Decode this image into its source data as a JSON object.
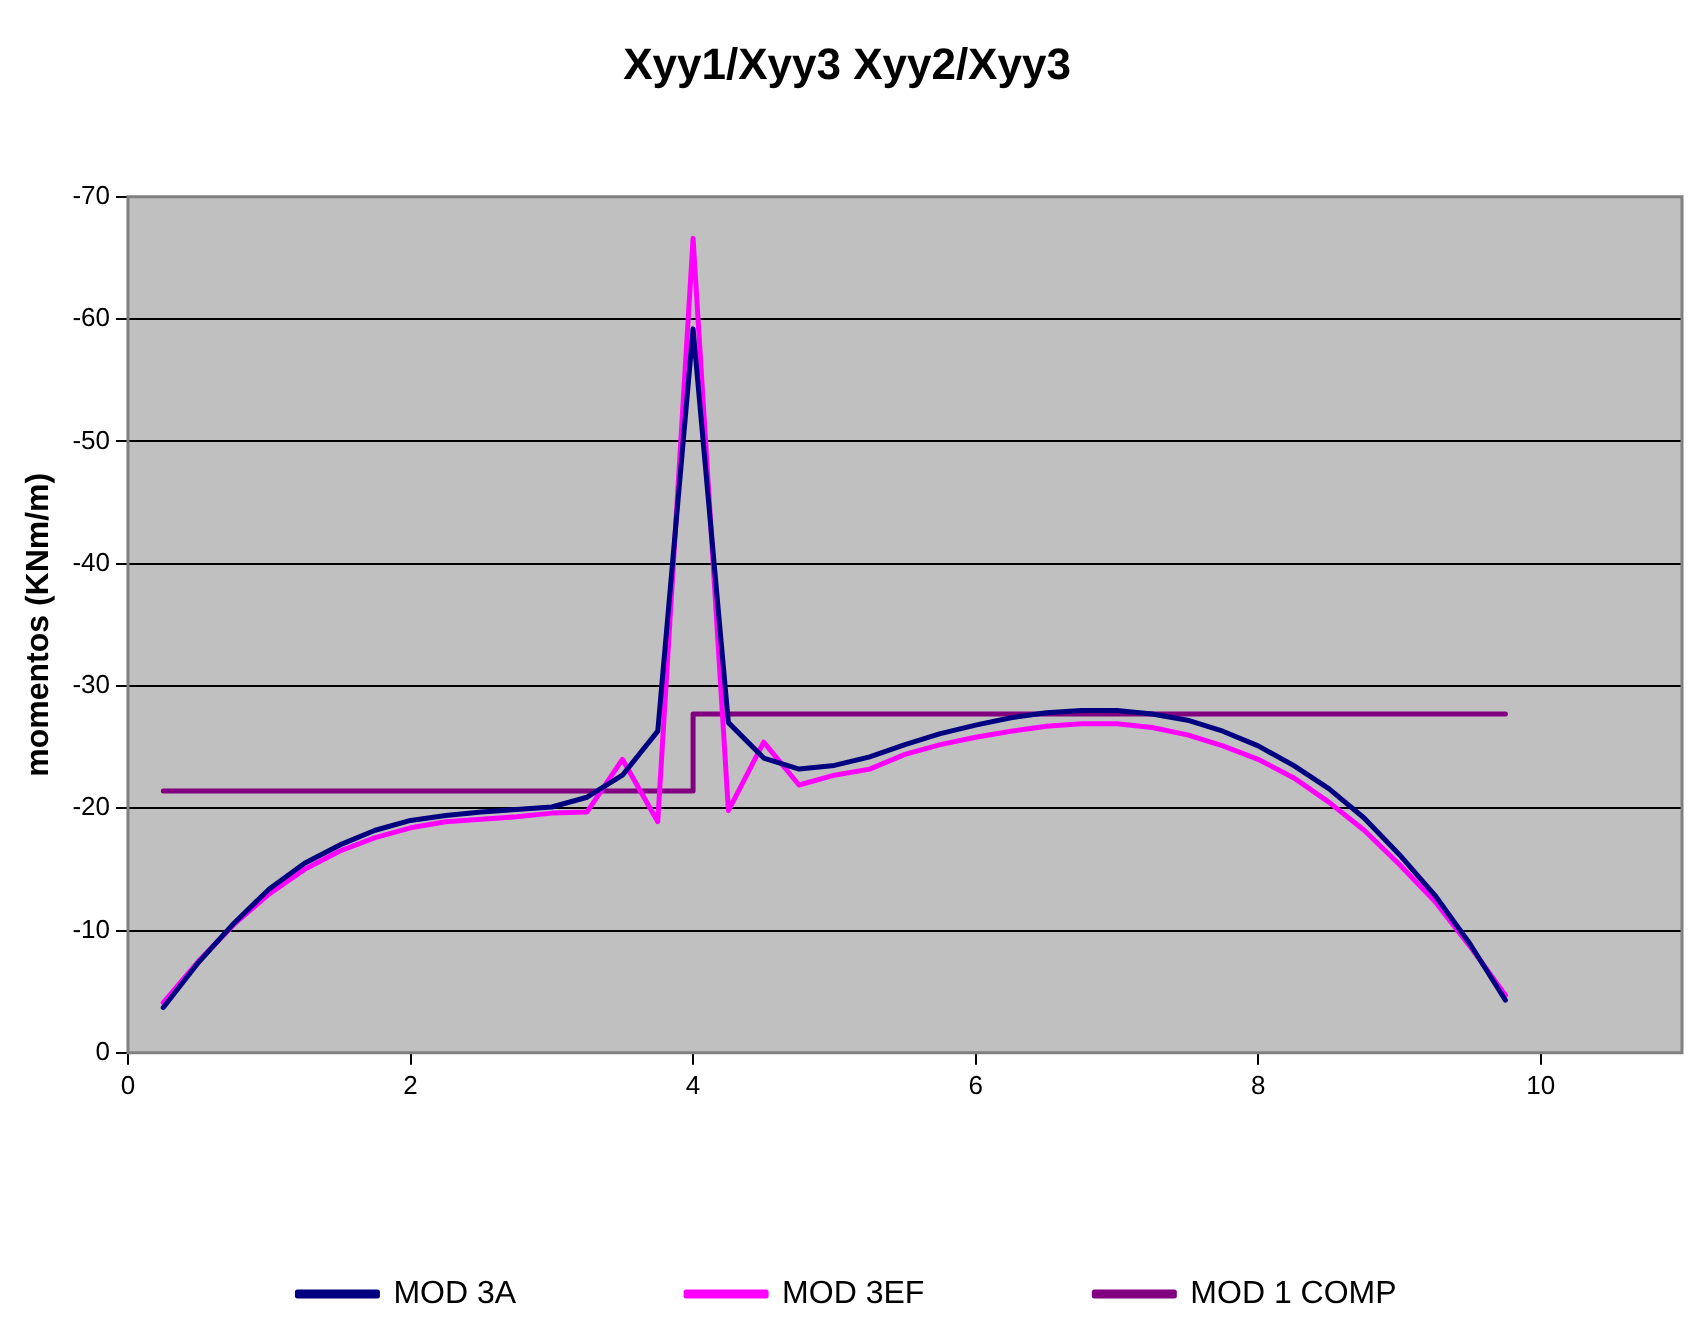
{
  "chart_data": {
    "type": "line",
    "title": "Xyy1/Xyy3 Xyy2/Xyy3",
    "ylabel": "momentos (KNm/m)",
    "x": [
      0.25,
      0.5,
      0.75,
      1,
      1.25,
      1.5,
      1.75,
      2,
      2.25,
      2.5,
      2.75,
      3,
      3.25,
      3.5,
      3.75,
      4,
      4.25,
      4.5,
      4.75,
      5,
      5.25,
      5.5,
      5.75,
      6,
      6.25,
      6.5,
      6.75,
      7,
      7.25,
      7.5,
      7.75,
      8,
      8.25,
      8.5,
      8.75,
      9,
      9.25,
      9.5,
      9.75
    ],
    "series": [
      {
        "name": "MOD 3A",
        "color": "#000080",
        "values": [
          -3.7,
          -7.4,
          -10.6,
          -13.4,
          -15.5,
          -17.0,
          -18.2,
          -19.0,
          -19.4,
          -19.7,
          -19.9,
          -20.1,
          -20.9,
          -22.7,
          -26.3,
          -59.2,
          -27.0,
          -24.1,
          -23.2,
          -23.5,
          -24.2,
          -25.2,
          -26.1,
          -26.8,
          -27.4,
          -27.8,
          -28.0,
          -28.0,
          -27.7,
          -27.2,
          -26.3,
          -25.1,
          -23.5,
          -21.6,
          -19.2,
          -16.2,
          -12.9,
          -8.9,
          -4.3
        ]
      },
      {
        "name": "MOD 3EF",
        "color": "#ff00ff",
        "values": [
          -4.1,
          -7.5,
          -10.5,
          -13.0,
          -15.0,
          -16.5,
          -17.6,
          -18.4,
          -18.9,
          -19.1,
          -19.3,
          -19.6,
          -19.7,
          -24.0,
          -18.9,
          -66.6,
          -19.8,
          -25.4,
          -21.9,
          -22.7,
          -23.2,
          -24.4,
          -25.2,
          -25.8,
          -26.3,
          -26.7,
          -26.9,
          -26.9,
          -26.6,
          -26.0,
          -25.1,
          -24.0,
          -22.5,
          -20.5,
          -18.2,
          -15.4,
          -12.4,
          -8.7,
          -4.7
        ]
      },
      {
        "name": "MOD 1 COMP",
        "color": "#800080",
        "x": [
          0.25,
          0.5,
          0.75,
          1,
          1.25,
          1.5,
          1.75,
          2,
          2.25,
          2.5,
          2.75,
          3,
          3.25,
          3.5,
          3.75,
          4,
          4,
          4.25,
          4.5,
          4.75,
          5,
          5.25,
          5.5,
          5.75,
          6,
          6.25,
          6.5,
          6.75,
          7,
          7.25,
          7.5,
          7.75,
          8,
          8.25,
          8.5,
          8.75,
          9,
          9.25,
          9.5,
          9.75
        ],
        "values": [
          -21.4,
          -21.4,
          -21.4,
          -21.4,
          -21.4,
          -21.4,
          -21.4,
          -21.4,
          -21.4,
          -21.4,
          -21.4,
          -21.4,
          -21.4,
          -21.4,
          -21.4,
          -21.4,
          -27.7,
          -27.7,
          -27.7,
          -27.7,
          -27.7,
          -27.7,
          -27.7,
          -27.7,
          -27.7,
          -27.7,
          -27.7,
          -27.7,
          -27.7,
          -27.7,
          -27.7,
          -27.7,
          -27.7,
          -27.7,
          -27.7,
          -27.7,
          -27.7,
          -27.7,
          -27.7,
          -27.7
        ]
      }
    ],
    "xlim": [
      0,
      11
    ],
    "xticks": [
      0,
      2,
      4,
      6,
      8,
      10
    ],
    "ylim": [
      0,
      -70
    ],
    "yticks": [
      0,
      -10,
      -20,
      -30,
      -40,
      -50,
      -60,
      -70
    ],
    "grid": "y",
    "legend": "bottom",
    "marker": "none",
    "line_style": "solid"
  }
}
